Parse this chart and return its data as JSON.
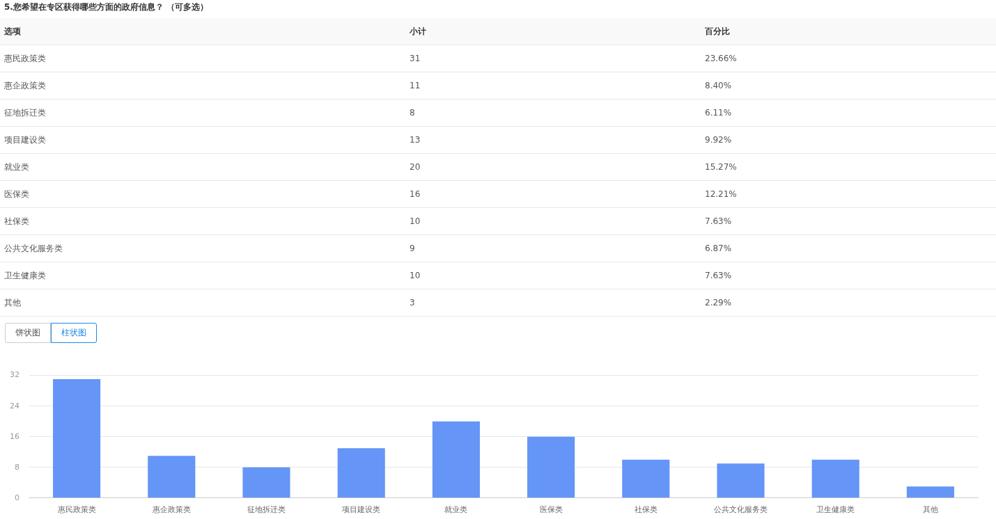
{
  "chart_data": [
    {
      "type": "other",
      "title": "5.您希望在专区获得哪些方面的政府信息？ （可多选）",
      "annotations": [
        "选项",
        "小计",
        "百分比",
        "惠民政策类",
        "31",
        "23.66%",
        "惠企政策类",
        "11",
        "8.40%",
        "征地拆迁类",
        "8",
        "6.11%",
        "项目建设类",
        "13",
        "9.92%",
        "就业类",
        "20",
        "15.27%",
        "医保类",
        "16",
        "12.21%",
        "社保类",
        "10",
        "7.63%",
        "公共文化服务类",
        "9",
        "6.87%",
        "卫生健康类",
        "10",
        "7.63%",
        "其他",
        "3",
        "2.29%",
        "饼状图",
        "柱状图"
      ]
    },
    {
      "type": "bar",
      "categories": [
        "惠民政策类",
        "惠企政策类",
        "征地拆迁类",
        "项目建设类",
        "就业类",
        "医保类",
        "社保类",
        "公共文化服务类",
        "卫生健康类",
        "其他"
      ],
      "values": [
        31,
        11,
        8,
        13,
        20,
        16,
        10,
        9,
        10,
        3
      ],
      "color": "#6495f7",
      "ylim": [
        0,
        32
      ],
      "yticks": [
        0,
        8,
        16,
        24,
        32
      ],
      "grid": "y",
      "legend": false
    }
  ]
}
